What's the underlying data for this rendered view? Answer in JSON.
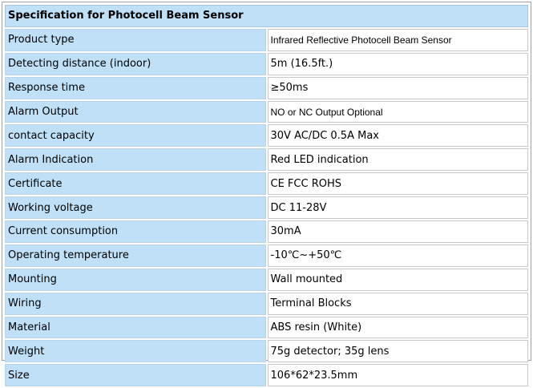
{
  "table": {
    "title": "Specification for Photocell Beam Sensor",
    "rows": [
      {
        "label": "Product type",
        "value": "Infrared Reflective Photocell Beam Sensor"
      },
      {
        "label": "Detecting distance (indoor)",
        "value": "5m (16.5ft.)"
      },
      {
        "label": "Response time",
        "value": "≥50ms"
      },
      {
        "label": "Alarm Output",
        "value": "NO or NC Output Optional"
      },
      {
        "label": "contact capacity",
        "value": "30V AC/DC 0.5A Max"
      },
      {
        "label": "Alarm Indication",
        "value": "Red LED indication"
      },
      {
        "label": "Certificate",
        "value": "CE FCC ROHS"
      },
      {
        "label": "Working voltage",
        "value": "DC 11-28V"
      },
      {
        "label": "Current consumption",
        "value": "30mA"
      },
      {
        "label": "Operating temperature",
        "value": "-10℃~+50℃"
      },
      {
        "label": "Mounting",
        "value": "Wall mounted"
      },
      {
        "label": "Wiring",
        "value": "Terminal Blocks"
      },
      {
        "label": "Material",
        "value": "ABS resin (White)"
      },
      {
        "label": "Weight",
        "value": "75g detector; 35g lens"
      },
      {
        "label": "Size",
        "value": "106*62*23.5mm"
      }
    ]
  },
  "colors": {
    "label_cell_bg": "#bfe0f6",
    "value_cell_bg": "#ffffff",
    "border": "#a0a0a0"
  }
}
